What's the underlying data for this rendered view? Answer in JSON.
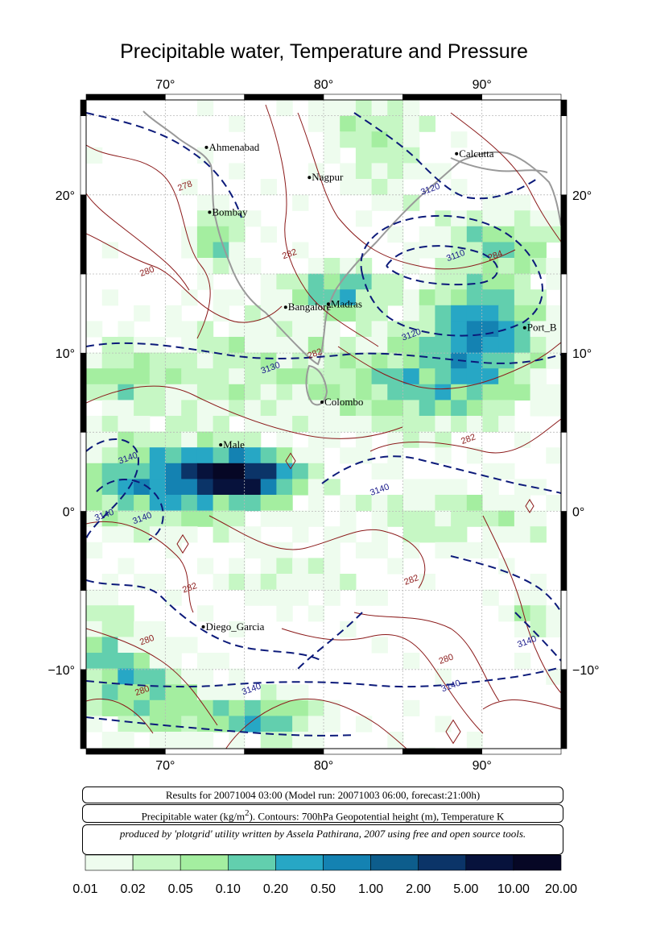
{
  "title": "Precipitable water, Temperature and Pressure",
  "map": {
    "lon_range": [
      65,
      95
    ],
    "lat_range": [
      -15,
      26
    ],
    "top_lon_labels": [
      "70°",
      "80°",
      "90°"
    ],
    "bottom_lon_labels": [
      "70°",
      "80°",
      "90°"
    ],
    "left_lat_labels": [
      "20°",
      "10°",
      "0°",
      "−10°"
    ],
    "right_lat_labels": [
      "20°",
      "10°",
      "0°",
      "−10°"
    ],
    "cities": [
      {
        "name": "Ahmenabad",
        "lon": 72.6,
        "lat": 23.0
      },
      {
        "name": "Nagpur",
        "lon": 79.1,
        "lat": 21.1
      },
      {
        "name": "Calcutta",
        "lon": 88.4,
        "lat": 22.6
      },
      {
        "name": "Bombay",
        "lon": 72.8,
        "lat": 18.9
      },
      {
        "name": "Bangalore",
        "lon": 77.6,
        "lat": 12.9
      },
      {
        "name": "Madras",
        "lon": 80.3,
        "lat": 13.1
      },
      {
        "name": "Port_B",
        "lon": 92.7,
        "lat": 11.6
      },
      {
        "name": "Colombo",
        "lon": 79.9,
        "lat": 6.9
      },
      {
        "name": "Male",
        "lon": 73.5,
        "lat": 4.2
      },
      {
        "name": "Diego_Garcia",
        "lon": 72.4,
        "lat": -7.3
      }
    ],
    "contour_labels": [
      {
        "text": "278",
        "lon": 71.3,
        "lat": 20.4,
        "color": "#8b1a1a"
      },
      {
        "text": "280",
        "lon": 68.9,
        "lat": 15.0,
        "color": "#8b1a1a"
      },
      {
        "text": "282",
        "lon": 77.9,
        "lat": 16.1,
        "color": "#8b1a1a"
      },
      {
        "text": "3120",
        "lon": 86.8,
        "lat": 20.2,
        "color": "#1a1a8b"
      },
      {
        "text": "3110",
        "lon": 88.4,
        "lat": 16.0,
        "color": "#1a1a8b"
      },
      {
        "text": "284",
        "lon": 90.9,
        "lat": 16.0,
        "color": "#8b1a1a"
      },
      {
        "text": "3120",
        "lon": 85.6,
        "lat": 11.0,
        "color": "#1a1a8b"
      },
      {
        "text": "282",
        "lon": 79.5,
        "lat": 9.8,
        "color": "#8b1a1a"
      },
      {
        "text": "3130",
        "lon": 76.7,
        "lat": 8.9,
        "color": "#1a1a8b"
      },
      {
        "text": "282",
        "lon": 89.2,
        "lat": 4.4,
        "color": "#8b1a1a"
      },
      {
        "text": "3140",
        "lon": 67.7,
        "lat": 3.2,
        "color": "#1a1a8b"
      },
      {
        "text": "3140",
        "lon": 66.2,
        "lat": -0.4,
        "color": "#1a1a8b"
      },
      {
        "text": "3140",
        "lon": 68.6,
        "lat": -0.6,
        "color": "#1a1a8b"
      },
      {
        "text": "3140",
        "lon": 83.6,
        "lat": 1.2,
        "color": "#1a1a8b"
      },
      {
        "text": "282",
        "lon": 85.6,
        "lat": -4.5,
        "color": "#8b1a1a"
      },
      {
        "text": "282",
        "lon": 71.6,
        "lat": -5.0,
        "color": "#8b1a1a"
      },
      {
        "text": "280",
        "lon": 68.9,
        "lat": -8.3,
        "color": "#8b1a1a"
      },
      {
        "text": "280",
        "lon": 87.8,
        "lat": -9.5,
        "color": "#8b1a1a"
      },
      {
        "text": "280",
        "lon": 68.6,
        "lat": -11.5,
        "color": "#8b1a1a"
      },
      {
        "text": "3140",
        "lon": 75.5,
        "lat": -11.4,
        "color": "#1a1a8b"
      },
      {
        "text": "3140",
        "lon": 88.1,
        "lat": -11.2,
        "color": "#1a1a8b"
      },
      {
        "text": "3140",
        "lon": 92.9,
        "lat": -8.4,
        "color": "#1a1a8b"
      }
    ]
  },
  "info": {
    "results_line": "Results for 20071004 03:00 (Model run: 20071003 06:00, forecast:21:00h)",
    "legend_line_start": "Precipitable water (kg/m",
    "legend_line_sup": "2",
    "legend_line_end": ").  Contours: 700hPa Geopotential height (m), Temperature K",
    "credit_line": "produced by 'plotgrid' utility written by Assela Pathirana, 2007 using free and open source tools."
  },
  "colorbar": {
    "colors": [
      "#eefcee",
      "#c6f7c4",
      "#a4eea0",
      "#62cfae",
      "#27a7c5",
      "#1482b2",
      "#0d5d8c",
      "#0b3468",
      "#07123c",
      "#060725",
      "#000010"
    ],
    "tick_labels": [
      "0.01",
      "0.02",
      "0.05",
      "0.10",
      "0.20",
      "0.50",
      "1.00",
      "2.00",
      "5.00",
      "10.00",
      "20.00"
    ]
  }
}
